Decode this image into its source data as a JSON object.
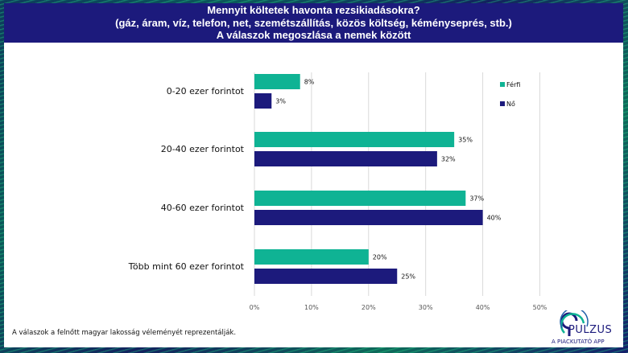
{
  "header": {
    "line1": "Mennyit költetek havonta rezsikiadásokra?",
    "line2": "(gáz, áram, víz, telefon, net, szemétszállítás, közös költség, kéményseprés, stb.)",
    "line3": "A válaszok megoszlása a nemek között"
  },
  "footnote": "A válaszok a felnőtt magyar lakosság véleményét reprezentálják.",
  "logo": {
    "word": "PULZUS",
    "tagline": "A PIACKUTATÓ APP"
  },
  "colors": {
    "ferfi": "#0fb394",
    "no": "#1c1a7c",
    "header_bg": "#1c1a7c"
  },
  "chart_data": {
    "type": "bar",
    "orientation": "horizontal",
    "title": "Mennyit költetek havonta rezsikiadásokra?",
    "categories": [
      "0-20 ezer forintot",
      "20-40 ezer forintot",
      "40-60 ezer forintot",
      "Több mint 60 ezer forintot"
    ],
    "series": [
      {
        "name": "Férfi",
        "values": [
          8,
          35,
          37,
          20
        ],
        "labels": [
          "8%",
          "35%",
          "37%",
          "20%"
        ]
      },
      {
        "name": "Nő",
        "values": [
          3,
          32,
          40,
          25
        ],
        "labels": [
          "3%",
          "32%",
          "40%",
          "25%"
        ]
      }
    ],
    "xlim": [
      0,
      50
    ],
    "ticks": [
      "0%",
      "10%",
      "20%",
      "30%",
      "40%",
      "50%"
    ],
    "tick_values": [
      0,
      10,
      20,
      30,
      40,
      50
    ],
    "grid": true,
    "legend": "right"
  }
}
